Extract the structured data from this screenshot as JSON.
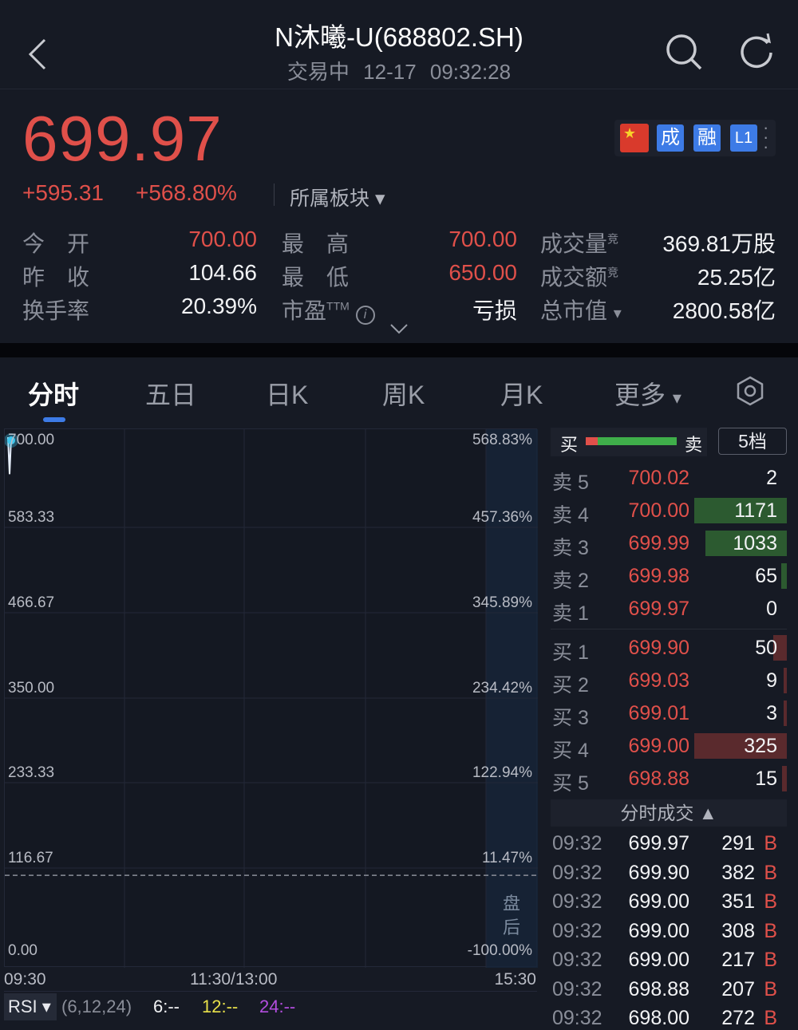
{
  "header": {
    "title": "N沐曦-U(688802.SH)",
    "status": "交易中",
    "datetime": "12-17 09:32:28",
    "icons": [
      "back-chevron-icon",
      "search-icon",
      "refresh-icon"
    ]
  },
  "quote": {
    "price": "699.97",
    "change": "+595.31",
    "change_pct": "+568.80%",
    "sector_label": "所属板块",
    "badges": [
      "成",
      "融",
      "L1"
    ],
    "flag": "china-flag-icon"
  },
  "stats": [
    {
      "label": "今　开",
      "value": "700.00",
      "red": true
    },
    {
      "label": "昨　收",
      "value": "104.66",
      "red": false
    },
    {
      "label": "换手率",
      "value": "20.39%",
      "red": false
    },
    {
      "label": "最　高",
      "value": "700.00",
      "red": true
    },
    {
      "label": "最　低",
      "value": "650.00",
      "red": true
    },
    {
      "label": "市盈",
      "sup": "TTM",
      "value": "亏损",
      "red": false
    },
    {
      "label": "成交量",
      "sup": "竞",
      "value": "369.81万股"
    },
    {
      "label": "成交额",
      "sup": "竞",
      "value": "25.25亿"
    },
    {
      "label": "总市值",
      "value": "2800.58亿"
    }
  ],
  "tabs": [
    {
      "label": "分时",
      "active": true
    },
    {
      "label": "五日"
    },
    {
      "label": "日K"
    },
    {
      "label": "周K"
    },
    {
      "label": "月K"
    },
    {
      "label": "更多"
    }
  ],
  "chart": {
    "price_ticks": [
      "700.00",
      "583.33",
      "466.67",
      "350.00",
      "233.33",
      "116.67",
      "0.00"
    ],
    "pct_ticks": [
      "568.83%",
      "457.36%",
      "345.89%",
      "234.42%",
      "122.94%",
      "11.47%",
      "-100.00%"
    ],
    "time_labels": [
      "09:30",
      "11:30/13:00",
      "15:30"
    ],
    "after_hours_label": "盘后",
    "prev_close": 104.66,
    "price_points": [
      700,
      650,
      699.97
    ],
    "ymin": 0,
    "ymax": 700
  },
  "indicator": {
    "name": "RSI",
    "params": "(6,12,24)",
    "lines": [
      {
        "label": "6:--",
        "color": "#f2f3f5"
      },
      {
        "label": "12:--",
        "color": "#e8e04a"
      },
      {
        "label": "24:--",
        "color": "#b44ee0"
      }
    ]
  },
  "orderbook": {
    "buy_label": "买",
    "sell_label": "卖",
    "depth_button": "5档",
    "buy_ratio": 0.13,
    "asks": [
      {
        "label": "卖 5",
        "price": "700.02",
        "vol": "2",
        "bar": 0
      },
      {
        "label": "卖 4",
        "price": "700.00",
        "vol": "1171",
        "bar": 1
      },
      {
        "label": "卖 3",
        "price": "699.99",
        "vol": "1033",
        "bar": 0.88
      },
      {
        "label": "卖 2",
        "price": "699.98",
        "vol": "65",
        "bar": 0.06
      },
      {
        "label": "卖 1",
        "price": "699.97",
        "vol": "0",
        "bar": 0
      }
    ],
    "bids": [
      {
        "label": "买 1",
        "price": "699.90",
        "vol": "50",
        "bar": 0.15
      },
      {
        "label": "买 2",
        "price": "699.03",
        "vol": "9",
        "bar": 0.03
      },
      {
        "label": "买 3",
        "price": "699.01",
        "vol": "3",
        "bar": 0.01
      },
      {
        "label": "买 4",
        "price": "699.00",
        "vol": "325",
        "bar": 1
      },
      {
        "label": "买 5",
        "price": "698.88",
        "vol": "15",
        "bar": 0.05
      }
    ]
  },
  "trades": {
    "title": "分时成交",
    "rows": [
      {
        "time": "09:32",
        "price": "699.97",
        "vol": "291",
        "side": "B"
      },
      {
        "time": "09:32",
        "price": "699.90",
        "vol": "382",
        "side": "B"
      },
      {
        "time": "09:32",
        "price": "699.00",
        "vol": "351",
        "side": "B"
      },
      {
        "time": "09:32",
        "price": "699.00",
        "vol": "308",
        "side": "B"
      },
      {
        "time": "09:32",
        "price": "699.00",
        "vol": "217",
        "side": "B"
      },
      {
        "time": "09:32",
        "price": "698.88",
        "vol": "207",
        "side": "B"
      },
      {
        "time": "09:32",
        "price": "698.00",
        "vol": "272",
        "side": "B"
      }
    ]
  },
  "colors": {
    "up": "#e0504a",
    "down_bar": "#2f6a37",
    "accent": "#3d7be6",
    "background": "#161a24"
  }
}
